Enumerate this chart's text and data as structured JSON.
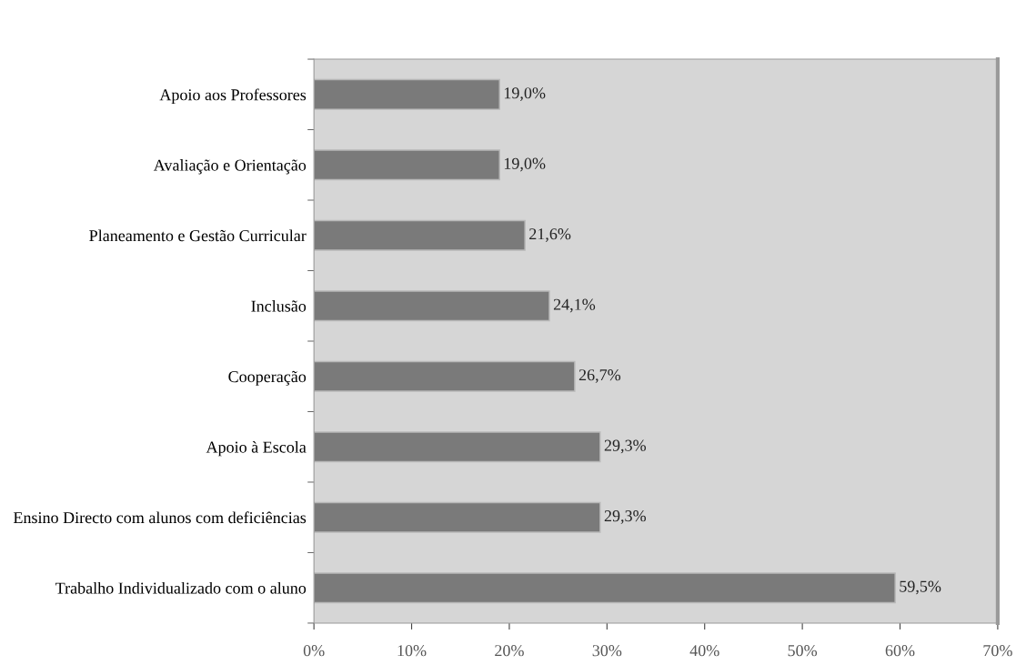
{
  "chart_data": {
    "type": "bar",
    "orientation": "horizontal",
    "categories": [
      "Apoio aos Professores",
      "Avaliação e Orientação",
      "Planeamento e Gestão Curricular",
      "Inclusão",
      "Cooperação",
      "Apoio à Escola",
      "Ensino Directo com alunos com deficiências",
      "Trabalho Individualizado com o aluno"
    ],
    "values": [
      19.0,
      19.0,
      21.6,
      24.1,
      26.7,
      29.3,
      29.3,
      59.5
    ],
    "value_labels": [
      "19,0%",
      "19,0%",
      "21,6%",
      "24,1%",
      "26,7%",
      "29,3%",
      "29,3%",
      "59,5%"
    ],
    "color": "#7a7a7a",
    "xlim": [
      0,
      70
    ],
    "xticks": [
      {
        "value": 0,
        "label": "0%"
      },
      {
        "value": 10,
        "label": "10%"
      },
      {
        "value": 20,
        "label": "20%"
      },
      {
        "value": 30,
        "label": "30%"
      },
      {
        "value": 40,
        "label": "40%"
      },
      {
        "value": 50,
        "label": "50%"
      },
      {
        "value": 60,
        "label": "60%"
      },
      {
        "value": 70,
        "label": "70%"
      }
    ],
    "grid": false
  }
}
